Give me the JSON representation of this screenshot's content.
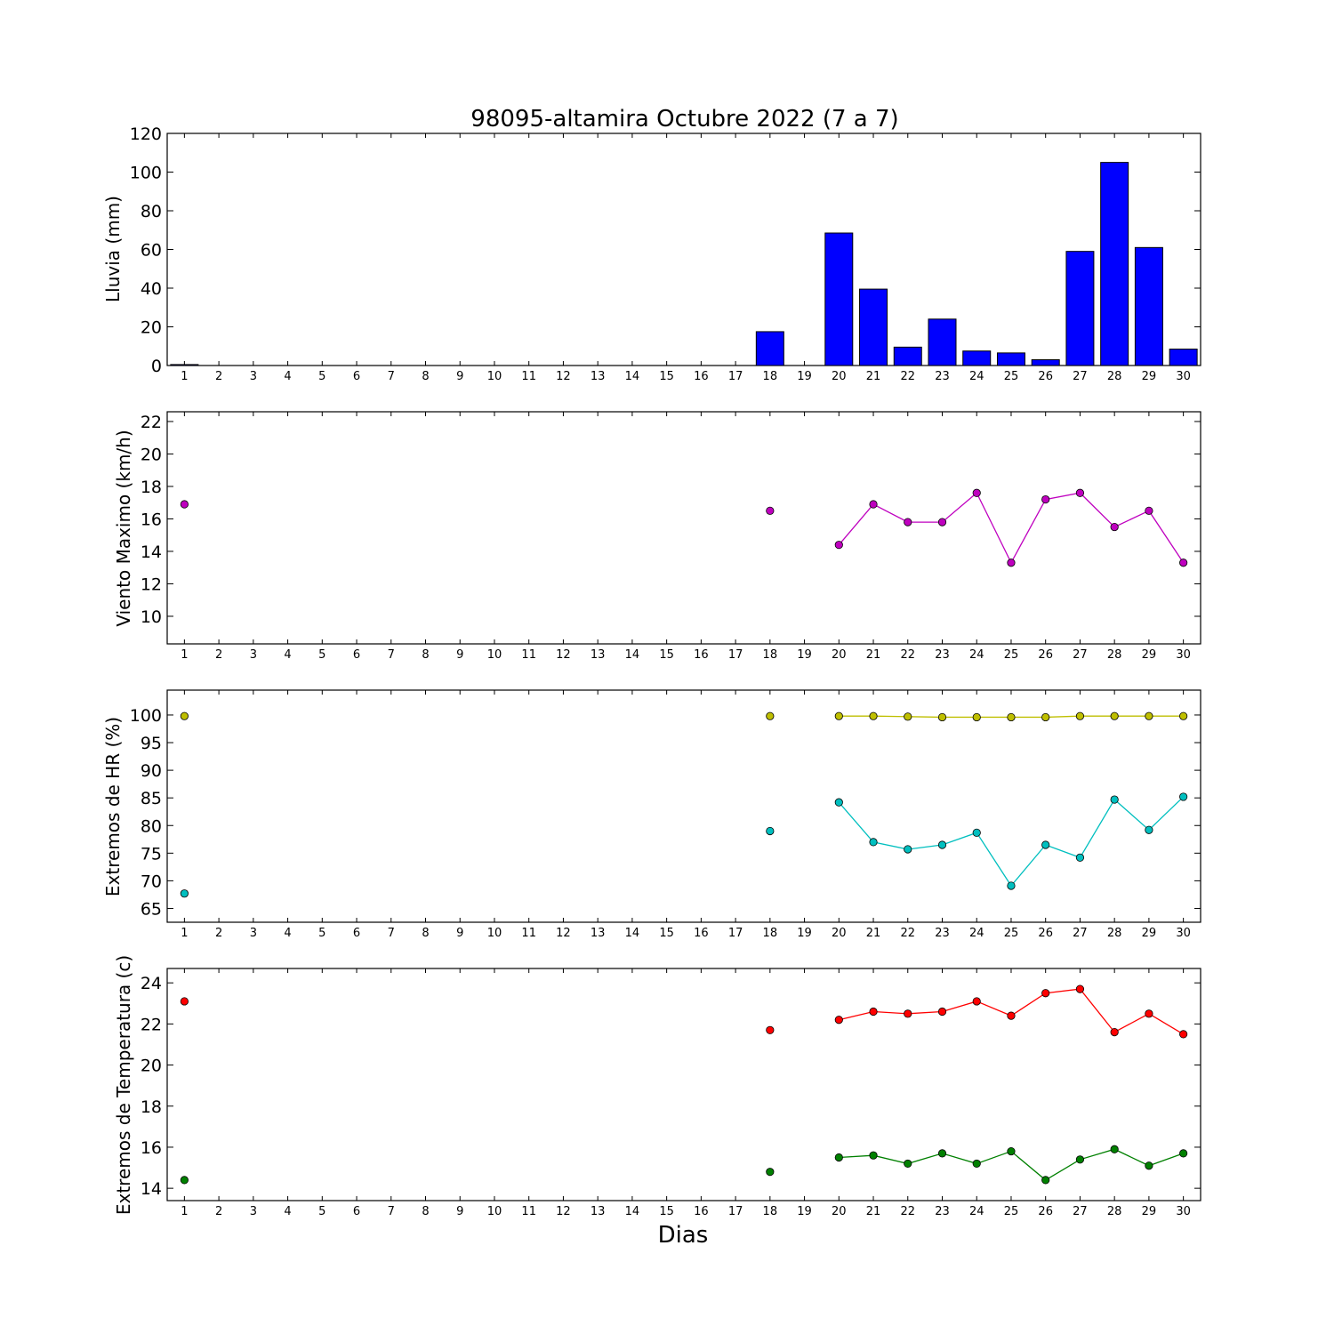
{
  "chart_data": [
    {
      "type": "bar",
      "title": "98095-altamira Octubre 2022  (7 a 7)",
      "ylabel": "Lluvia (mm)",
      "xlabel": "",
      "x": [
        1,
        2,
        3,
        4,
        5,
        6,
        7,
        8,
        9,
        10,
        11,
        12,
        13,
        14,
        15,
        16,
        17,
        18,
        19,
        20,
        21,
        22,
        23,
        24,
        25,
        26,
        27,
        28,
        29,
        30
      ],
      "ylim": [
        0,
        120
      ],
      "yticks": [
        0,
        20,
        40,
        60,
        80,
        100,
        120
      ],
      "series": [
        {
          "color": "#0000ff",
          "values": [
            0.5,
            0,
            0,
            0,
            0,
            0,
            0,
            0,
            0,
            0,
            0,
            0,
            0,
            0,
            0,
            0,
            0,
            17.5,
            0,
            68.5,
            39.5,
            9.5,
            24,
            7.5,
            6.5,
            3,
            59,
            105,
            61,
            8.5
          ]
        }
      ]
    },
    {
      "type": "line",
      "title": "",
      "ylabel": "Viento Maximo (km/h)",
      "xlabel": "",
      "x": [
        1,
        2,
        3,
        4,
        5,
        6,
        7,
        8,
        9,
        10,
        11,
        12,
        13,
        14,
        15,
        16,
        17,
        18,
        19,
        20,
        21,
        22,
        23,
        24,
        25,
        26,
        27,
        28,
        29,
        30
      ],
      "ylim": [
        8.3,
        22.6
      ],
      "yticks": [
        10,
        12,
        14,
        16,
        18,
        20,
        22
      ],
      "series": [
        {
          "color": "#bf00bf",
          "values": [
            16.9,
            null,
            null,
            null,
            null,
            null,
            null,
            null,
            null,
            null,
            null,
            null,
            null,
            null,
            null,
            null,
            null,
            16.5,
            null,
            14.4,
            16.9,
            15.8,
            15.8,
            17.6,
            13.3,
            17.2,
            17.6,
            15.5,
            16.5,
            13.3
          ]
        }
      ]
    },
    {
      "type": "line",
      "title": "",
      "ylabel": "Extremos de HR (%)",
      "xlabel": "",
      "x": [
        1,
        2,
        3,
        4,
        5,
        6,
        7,
        8,
        9,
        10,
        11,
        12,
        13,
        14,
        15,
        16,
        17,
        18,
        19,
        20,
        21,
        22,
        23,
        24,
        25,
        26,
        27,
        28,
        29,
        30
      ],
      "ylim": [
        62.5,
        104.5
      ],
      "yticks": [
        65,
        70,
        75,
        80,
        85,
        90,
        95,
        100
      ],
      "series": [
        {
          "color": "#bfbf00",
          "values": [
            99.8,
            null,
            null,
            null,
            null,
            null,
            null,
            null,
            null,
            null,
            null,
            null,
            null,
            null,
            null,
            null,
            null,
            99.8,
            null,
            99.8,
            99.8,
            99.7,
            99.6,
            99.6,
            99.6,
            99.6,
            99.8,
            99.8,
            99.8,
            99.8
          ]
        },
        {
          "color": "#00bfbf",
          "values": [
            67.7,
            null,
            null,
            null,
            null,
            null,
            null,
            null,
            null,
            null,
            null,
            null,
            null,
            null,
            null,
            null,
            null,
            79,
            null,
            84.2,
            77,
            75.7,
            76.5,
            78.7,
            69.1,
            76.5,
            74.2,
            84.7,
            79.2,
            85.2
          ]
        }
      ]
    },
    {
      "type": "line",
      "title": "",
      "ylabel": "Extremos de Temperatura (c)",
      "xlabel": "Dias",
      "x": [
        1,
        2,
        3,
        4,
        5,
        6,
        7,
        8,
        9,
        10,
        11,
        12,
        13,
        14,
        15,
        16,
        17,
        18,
        19,
        20,
        21,
        22,
        23,
        24,
        25,
        26,
        27,
        28,
        29,
        30
      ],
      "ylim": [
        13.4,
        24.7
      ],
      "yticks": [
        14,
        16,
        18,
        20,
        22,
        24
      ],
      "series": [
        {
          "color": "#ff0000",
          "values": [
            23.1,
            null,
            null,
            null,
            null,
            null,
            null,
            null,
            null,
            null,
            null,
            null,
            null,
            null,
            null,
            null,
            null,
            21.7,
            null,
            22.2,
            22.6,
            22.5,
            22.6,
            23.1,
            22.4,
            23.5,
            23.7,
            21.6,
            22.5,
            21.5
          ]
        },
        {
          "color": "#008000",
          "values": [
            14.4,
            null,
            null,
            null,
            null,
            null,
            null,
            null,
            null,
            null,
            null,
            null,
            null,
            null,
            null,
            null,
            null,
            14.8,
            null,
            15.5,
            15.6,
            15.2,
            15.7,
            15.2,
            15.8,
            14.4,
            15.4,
            15.9,
            15.1,
            15.7
          ]
        }
      ]
    }
  ]
}
